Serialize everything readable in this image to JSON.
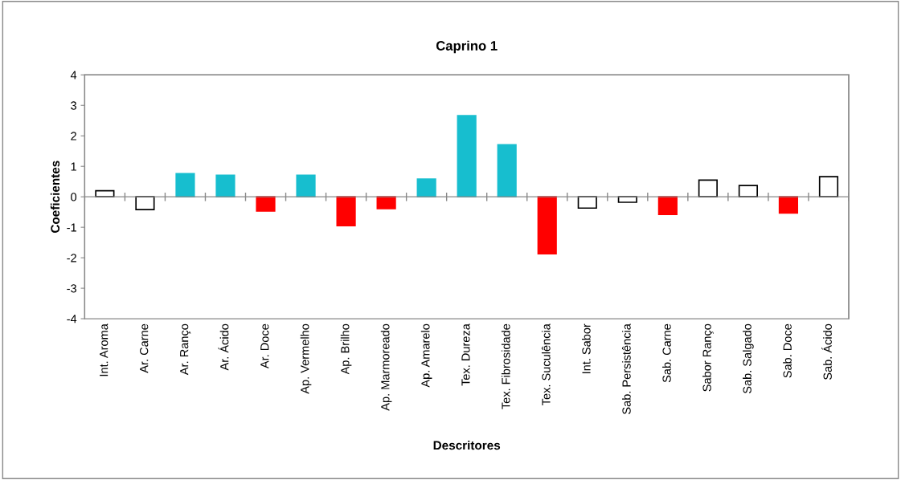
{
  "chart_data": {
    "type": "bar",
    "title": "Caprino 1",
    "xlabel": "Descritores",
    "ylabel": "Coeficientes",
    "categories": [
      "Int. Aroma",
      "Ar. Carne",
      "Ar. Ranço",
      "Ar. Ácido",
      "Ar. Doce",
      "Ap. Vermelho",
      "Ap. Brilho",
      "Ap. Marmoreado",
      "Ap. Amarelo",
      "Tex. Dureza",
      "Tex. Fibrosidade",
      "Tex. Suculência",
      "Int. Sabor",
      "Sab. Persistência",
      "Sab. Carne",
      "Sabor Ranço",
      "Sab. Salgado",
      "Sab. Doce",
      "Sab. Ácido"
    ],
    "values": [
      0.2,
      -0.42,
      0.76,
      0.71,
      -0.47,
      0.71,
      -0.95,
      -0.39,
      0.58,
      2.66,
      1.71,
      -1.87,
      -0.37,
      -0.18,
      -0.58,
      0.55,
      0.37,
      -0.53,
      0.66
    ],
    "colors": [
      "#ffffff",
      "#ffffff",
      "#17becf",
      "#17becf",
      "#ff0000",
      "#17becf",
      "#ff0000",
      "#ff0000",
      "#17becf",
      "#17becf",
      "#17becf",
      "#ff0000",
      "#ffffff",
      "#ffffff",
      "#ff0000",
      "#ffffff",
      "#ffffff",
      "#ff0000",
      "#ffffff"
    ],
    "ylim": [
      -4,
      4
    ],
    "yticks": [
      -4,
      -3,
      -2,
      -1,
      0,
      1,
      2,
      3,
      4
    ],
    "legend": false
  }
}
